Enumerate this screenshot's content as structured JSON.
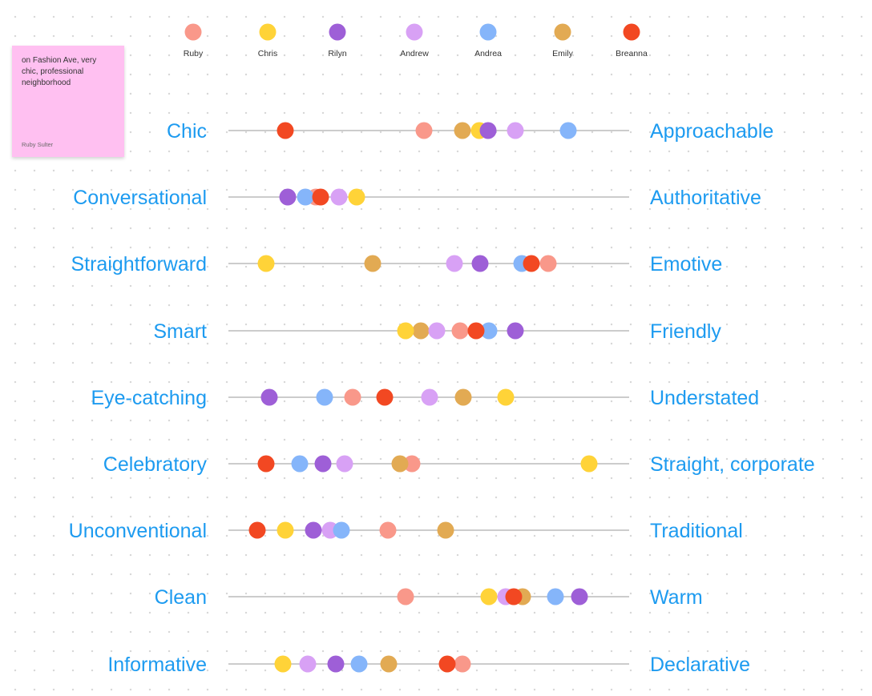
{
  "note": {
    "text": "on Fashion Ave, very chic, professional neighborhood",
    "author": "Ruby Sulter"
  },
  "legend": [
    {
      "name": "Ruby",
      "color": "#f9988a"
    },
    {
      "name": "Chris",
      "color": "#ffd338"
    },
    {
      "name": "Rilyn",
      "color": "#9e5fd7"
    },
    {
      "name": "Andrew",
      "color": "#d8a1f5"
    },
    {
      "name": "Andrea",
      "color": "#85b5fa"
    },
    {
      "name": "Emily",
      "color": "#e2aa53"
    },
    {
      "name": "Breanna",
      "color": "#f24822"
    }
  ],
  "scales": [
    {
      "left": "Chic",
      "right": "Approachable",
      "ratings": {
        "Breanna": 0.142,
        "Ruby": 0.488,
        "Emily": 0.584,
        "Chris": 0.626,
        "Rilyn": 0.648,
        "Andrew": 0.716,
        "Andrea": 0.848
      }
    },
    {
      "left": "Conversational",
      "right": "Authoritative",
      "ratings": {
        "Rilyn": 0.148,
        "Andrea": 0.192,
        "Ruby": 0.218,
        "Breanna": 0.23,
        "Andrew": 0.276,
        "Chris": 0.32
      }
    },
    {
      "left": "Straightforward",
      "right": "Emotive",
      "ratings": {
        "Chris": 0.094,
        "Emily": 0.36,
        "Andrew": 0.564,
        "Rilyn": 0.628,
        "Andrea": 0.732,
        "Breanna": 0.756,
        "Ruby": 0.798
      }
    },
    {
      "left": "Smart",
      "right": "Friendly",
      "ratings": {
        "Chris": 0.442,
        "Emily": 0.48,
        "Andrew": 0.52,
        "Ruby": 0.578,
        "Andrea": 0.65,
        "Breanna": 0.618,
        "Rilyn": 0.716
      }
    },
    {
      "left": "Eye-catching",
      "right": "Understated",
      "ratings": {
        "Rilyn": 0.102,
        "Andrea": 0.24,
        "Ruby": 0.31,
        "Breanna": 0.39,
        "Andrew": 0.502,
        "Emily": 0.586,
        "Chris": 0.692
      }
    },
    {
      "left": "Celebratory",
      "right": "Straight, corporate",
      "ratings": {
        "Breanna": 0.094,
        "Andrea": 0.178,
        "Rilyn": 0.236,
        "Andrew": 0.29,
        "Emily": 0.428,
        "Ruby": 0.458,
        "Chris": 0.9
      }
    },
    {
      "left": "Unconventional",
      "right": "Traditional",
      "ratings": {
        "Breanna": 0.072,
        "Chris": 0.142,
        "Rilyn": 0.212,
        "Andrea": 0.282,
        "Andrew": 0.254,
        "Ruby": 0.398,
        "Emily": 0.542
      }
    },
    {
      "left": "Clean",
      "right": "Warm",
      "ratings": {
        "Ruby": 0.442,
        "Chris": 0.65,
        "Andrew": 0.692,
        "Emily": 0.734,
        "Breanna": 0.712,
        "Andrea": 0.816,
        "Rilyn": 0.876
      }
    },
    {
      "left": "Informative",
      "right": "Declarative",
      "ratings": {
        "Chris": 0.136,
        "Andrew": 0.198,
        "Rilyn": 0.268,
        "Andrea": 0.326,
        "Emily": 0.4,
        "Ruby": 0.584,
        "Breanna": 0.546
      }
    }
  ],
  "colors": {
    "label": "#1d9bf0",
    "track": "#cccccc",
    "legend_text": "#333333"
  }
}
